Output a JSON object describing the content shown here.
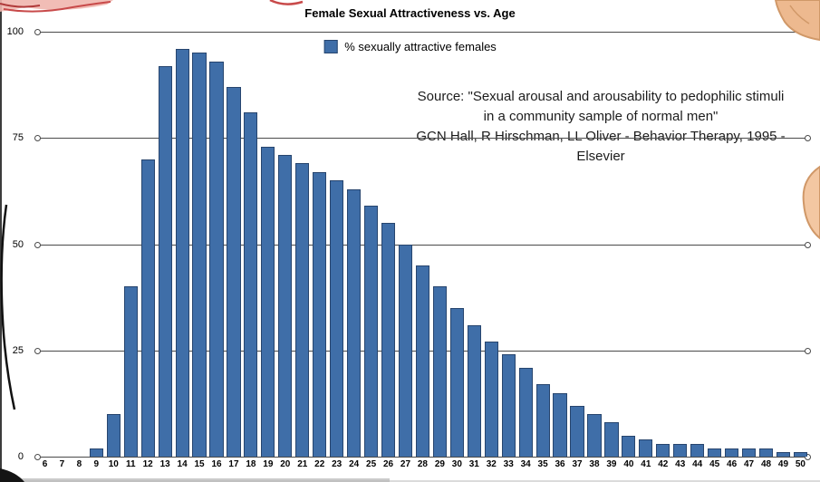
{
  "title": "Female Sexual Attractiveness vs. Age",
  "legend": {
    "label": "% sexually attractive females"
  },
  "source": {
    "line1": "Source: \"Sexual arousal and arousability to pedophilic stimuli",
    "line2": "in a community sample of normal men\"",
    "line3": "GCN Hall, R Hirschman, LL Oliver - Behavior Therapy, 1995 - Elsevier"
  },
  "colors": {
    "bar": "#3f6ea8",
    "bar_border": "#27456e",
    "grid": "#4a4a4a",
    "background": "#ffffff",
    "skin": "#edb98f",
    "skin_outline": "#d09868",
    "accent_red": "#c84a4a",
    "ink": "#151515"
  },
  "chart_data": {
    "type": "bar",
    "title": "Female Sexual Attractiveness vs. Age",
    "series_name": "% sexually attractive females",
    "categories": [
      6,
      7,
      8,
      9,
      10,
      11,
      12,
      13,
      14,
      15,
      16,
      17,
      18,
      19,
      20,
      21,
      22,
      23,
      24,
      25,
      26,
      27,
      28,
      29,
      30,
      31,
      32,
      33,
      34,
      35,
      36,
      37,
      38,
      39,
      40,
      41,
      42,
      43,
      44,
      45,
      46,
      47,
      48,
      49,
      50
    ],
    "values": [
      0,
      0,
      0,
      2,
      10,
      40,
      70,
      92,
      96,
      95,
      93,
      87,
      81,
      73,
      71,
      69,
      67,
      65,
      63,
      59,
      55,
      50,
      45,
      40,
      35,
      31,
      27,
      24,
      21,
      17,
      15,
      12,
      10,
      8,
      5,
      4,
      3,
      3,
      3,
      2,
      2,
      2,
      2,
      1,
      1
    ],
    "xlabel": "",
    "ylabel": "",
    "ylim": [
      0,
      100
    ],
    "yticks": [
      0,
      25,
      50,
      75,
      100
    ],
    "grid": true,
    "legend_position": "top-center"
  }
}
